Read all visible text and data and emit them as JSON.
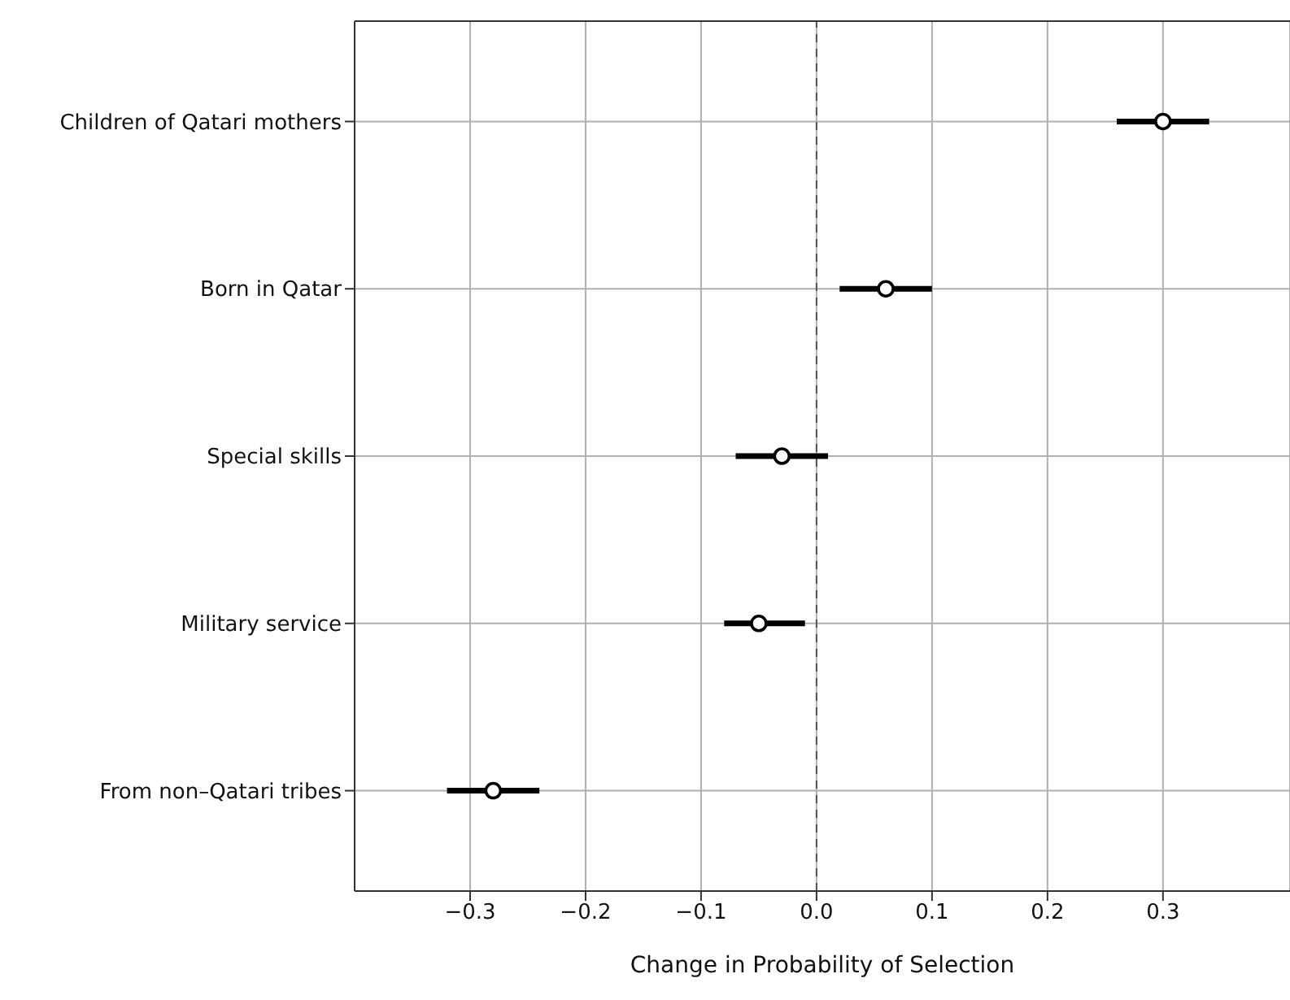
{
  "chart_data": {
    "type": "scatter",
    "orientation": "horizontal",
    "xlabel": "Change in Probability of Selection",
    "categories": [
      "Children of Qatari mothers",
      "Born in Qatar",
      "Special skills",
      "Military service",
      "From non–Qatari tribes"
    ],
    "values": [
      0.3,
      0.06,
      -0.03,
      -0.05,
      -0.28
    ],
    "errors": [
      [
        0.26,
        0.34
      ],
      [
        0.02,
        0.1
      ],
      [
        -0.07,
        0.01
      ],
      [
        -0.08,
        -0.01
      ],
      [
        -0.32,
        -0.24
      ]
    ],
    "color": "#000000",
    "marker": "circle",
    "xlim": [
      -0.4,
      0.41
    ],
    "xticks": [
      {
        "value": -0.3,
        "label": "−0.3"
      },
      {
        "value": -0.2,
        "label": "−0.2"
      },
      {
        "value": -0.1,
        "label": "−0.1"
      },
      {
        "value": 0,
        "label": "0.0"
      },
      {
        "value": 0.1,
        "label": "0.1"
      },
      {
        "value": 0.2,
        "label": "0.2"
      },
      {
        "value": 0.3,
        "label": "0.3"
      }
    ],
    "ref_lines": [
      {
        "axis": "x",
        "value": 0,
        "line_style": "dashed",
        "color": "#555555"
      }
    ],
    "grid": true,
    "legend": false
  }
}
